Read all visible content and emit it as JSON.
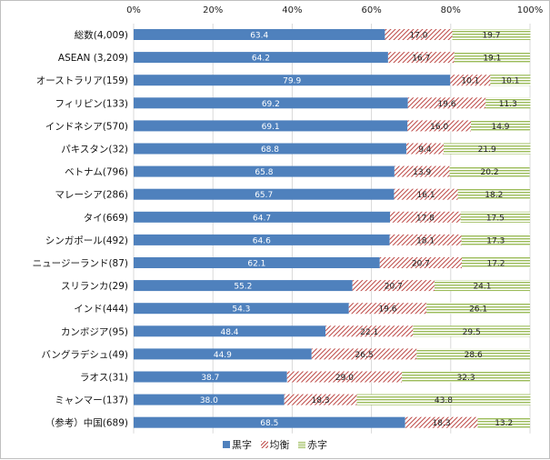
{
  "chart_data": {
    "type": "bar",
    "orientation": "horizontal",
    "stacked": true,
    "xlim": [
      0,
      100
    ],
    "x_ticks": [
      "0%",
      "20%",
      "40%",
      "60%",
      "80%",
      "100%"
    ],
    "categories": [
      "総数(4,009)",
      "ASEAN (3,209)",
      "オーストラリア(159)",
      "フィリピン(133)",
      "インドネシア(570)",
      "パキスタン(32)",
      "ベトナム(796)",
      "マレーシア(286)",
      "タイ(669)",
      "シンガポール(492)",
      "ニュージーランド(87)",
      "スリランカ(29)",
      "インド(444)",
      "カンボジア(95)",
      "バングラデシュ(49)",
      "ラオス(31)",
      "ミャンマー(137)",
      "（参考）中国(689)"
    ],
    "series": [
      {
        "name": "黒字",
        "color": "#4f81bd",
        "pattern": "solid",
        "values": [
          63.4,
          64.2,
          79.9,
          69.2,
          69.1,
          68.8,
          65.8,
          65.7,
          64.7,
          64.6,
          62.1,
          55.2,
          54.3,
          48.4,
          44.9,
          38.7,
          38.0,
          68.5
        ]
      },
      {
        "name": "均衡",
        "color": "#c0504d",
        "pattern": "diagonal",
        "values": [
          17.0,
          16.7,
          10.1,
          19.6,
          16.0,
          9.4,
          13.9,
          16.1,
          17.8,
          18.1,
          20.7,
          20.7,
          19.6,
          22.1,
          26.5,
          29.0,
          18.3,
          18.3
        ]
      },
      {
        "name": "赤字",
        "color": "#9bbb59",
        "pattern": "horizontal",
        "values": [
          19.7,
          19.1,
          10.1,
          11.3,
          14.9,
          21.9,
          20.2,
          18.2,
          17.5,
          17.3,
          17.2,
          24.1,
          26.1,
          29.5,
          28.6,
          32.3,
          43.8,
          13.2
        ]
      }
    ],
    "grid": true,
    "legend_position": "bottom"
  }
}
